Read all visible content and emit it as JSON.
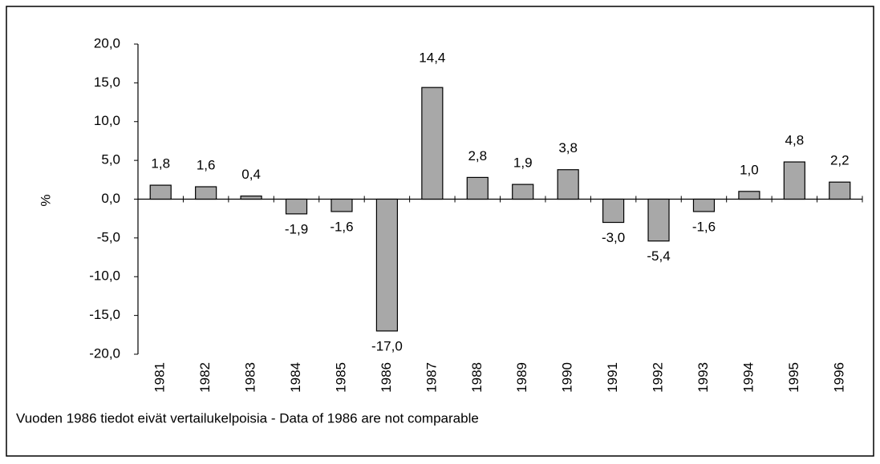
{
  "chart_data": {
    "type": "bar",
    "ylabel": "%",
    "categories": [
      "1981",
      "1982",
      "1983",
      "1984",
      "1985",
      "1986",
      "1987",
      "1988",
      "1989",
      "1990",
      "1991",
      "1992",
      "1993",
      "1994",
      "1995",
      "1996"
    ],
    "values": [
      1.8,
      1.6,
      0.4,
      -1.9,
      -1.6,
      -17.0,
      14.4,
      2.8,
      1.9,
      3.8,
      -3.0,
      -5.4,
      -1.6,
      1.0,
      4.8,
      2.2
    ],
    "value_labels": [
      "1,8",
      "1,6",
      "0,4",
      "-1,9",
      "-1,6",
      "-17,0",
      "14,4",
      "2,8",
      "1,9",
      "3,8",
      "-3,0",
      "-5,4",
      "-1,6",
      "1,0",
      "4,8",
      "2,2"
    ],
    "color": "#a8a8a8",
    "ylim": [
      -20,
      20
    ],
    "yticks": [
      {
        "value": -20,
        "label": "-20,0"
      },
      {
        "value": -15,
        "label": "-15,0"
      },
      {
        "value": -10,
        "label": "-10,0"
      },
      {
        "value": -5,
        "label": "-5,0"
      },
      {
        "value": 0,
        "label": "0,0"
      },
      {
        "value": 5,
        "label": "5,0"
      },
      {
        "value": 10,
        "label": "10,0"
      },
      {
        "value": 15,
        "label": "15,0"
      },
      {
        "value": 20,
        "label": "20,0"
      }
    ],
    "annotation": "Vuoden 1986 tiedot eivät vertailukelpoisia - Data of 1986 are not comparable"
  }
}
